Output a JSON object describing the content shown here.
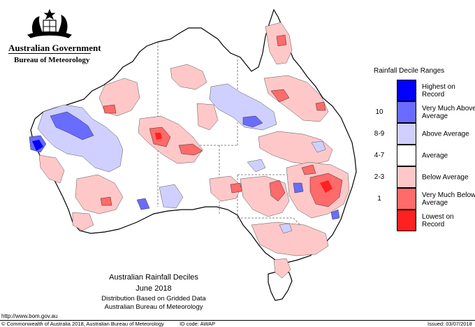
{
  "header": {
    "government": "Australian Government",
    "bureau": "Bureau of Meteorology"
  },
  "legend": {
    "title": "Rainfall Decile Ranges",
    "items": [
      {
        "label": "Highest on Record",
        "decile": "",
        "color": "#0000ff"
      },
      {
        "label": "Very Much Above Average",
        "decile": "10",
        "color": "#6a6cff"
      },
      {
        "label": "Above Average",
        "decile": "8-9",
        "color": "#cfd0ff"
      },
      {
        "label": "Average",
        "decile": "4-7",
        "color": "#ffffff"
      },
      {
        "label": "Below Average",
        "decile": "2-3",
        "color": "#ffc8c8"
      },
      {
        "label": "Very Much Below Average",
        "decile": "1",
        "color": "#ff6a6a"
      },
      {
        "label": "Lowest on Record",
        "decile": "",
        "color": "#ff2020"
      }
    ]
  },
  "caption": {
    "title": "Australian Rainfall Deciles",
    "period": "June 2018",
    "subtitle1": "Distribution Based on Gridded Data",
    "subtitle2": "Australian Bureau of Meteorology"
  },
  "footer": {
    "url": "http://www.bom.gov.au",
    "copyright": "© Commonwealth of Australia 2018, Australian Bureau of Meteorology",
    "id_code": "ID code: AWAP",
    "issued": "Issued: 03/07/2018"
  },
  "icons": {
    "crest": "coat-of-arms-icon"
  }
}
